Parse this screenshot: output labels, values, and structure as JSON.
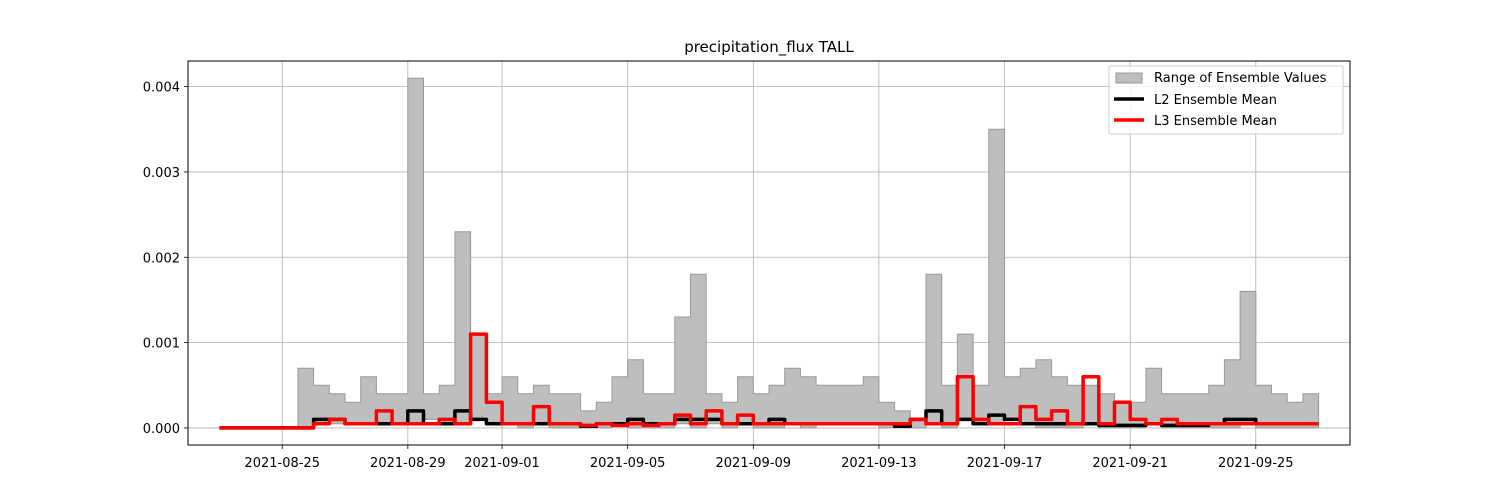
{
  "chart_data": {
    "type": "line",
    "title": "precipitation_flux TALL",
    "xlabel": "",
    "ylabel": "",
    "x_ticks": [
      "2021-08-25",
      "2021-08-29",
      "2021-09-01",
      "2021-09-05",
      "2021-09-09",
      "2021-09-13",
      "2021-09-17",
      "2021-09-21",
      "2021-09-25"
    ],
    "y_ticks": [
      "0.000",
      "0.001",
      "0.002",
      "0.003",
      "0.004"
    ],
    "xlim": [
      "2021-08-22",
      "2021-09-28"
    ],
    "ylim": [
      -0.0002,
      0.0043
    ],
    "grid": true,
    "legend_position": "top-right",
    "x": [
      "2021-08-23",
      "2021-08-23",
      "2021-08-24",
      "2021-08-24",
      "2021-08-25",
      "2021-08-25",
      "2021-08-26",
      "2021-08-26",
      "2021-08-27",
      "2021-08-27",
      "2021-08-28",
      "2021-08-28",
      "2021-08-29",
      "2021-08-29",
      "2021-08-30",
      "2021-08-30",
      "2021-08-31",
      "2021-08-31",
      "2021-09-01",
      "2021-09-01",
      "2021-09-02",
      "2021-09-02",
      "2021-09-03",
      "2021-09-03",
      "2021-09-04",
      "2021-09-04",
      "2021-09-05",
      "2021-09-05",
      "2021-09-06",
      "2021-09-06",
      "2021-09-07",
      "2021-09-07",
      "2021-09-08",
      "2021-09-08",
      "2021-09-09",
      "2021-09-09",
      "2021-09-10",
      "2021-09-10",
      "2021-09-11",
      "2021-09-11",
      "2021-09-12",
      "2021-09-12",
      "2021-09-13",
      "2021-09-13",
      "2021-09-14",
      "2021-09-14",
      "2021-09-15",
      "2021-09-15",
      "2021-09-16",
      "2021-09-16",
      "2021-09-17",
      "2021-09-17",
      "2021-09-18",
      "2021-09-18",
      "2021-09-19",
      "2021-09-19",
      "2021-09-20",
      "2021-09-20",
      "2021-09-21",
      "2021-09-21",
      "2021-09-22",
      "2021-09-22",
      "2021-09-23",
      "2021-09-23",
      "2021-09-24",
      "2021-09-24",
      "2021-09-25",
      "2021-09-25",
      "2021-09-26",
      "2021-09-26",
      "2021-09-27"
    ],
    "series": [
      {
        "name": "Range of Ensemble Values",
        "kind": "range",
        "color": "#bebebe",
        "edge_color": "#999999",
        "low": [
          0,
          0,
          0,
          0,
          0,
          0,
          5e-05,
          5e-05,
          5e-05,
          5e-05,
          5e-05,
          5e-05,
          5e-05,
          0.0001,
          5e-05,
          5e-05,
          0.0001,
          5e-05,
          5e-05,
          0,
          5e-05,
          0,
          0,
          0,
          0,
          5e-05,
          0,
          0,
          0,
          5e-05,
          0,
          5e-05,
          0,
          5e-05,
          0,
          0,
          5e-05,
          0,
          5e-05,
          5e-05,
          5e-05,
          5e-05,
          0,
          0,
          0,
          5e-05,
          0,
          0.0001,
          5e-05,
          5e-05,
          0.0001,
          5e-05,
          0,
          0,
          0,
          5e-05,
          0,
          0,
          0,
          5e-05,
          0,
          0,
          0,
          0,
          0,
          5e-05,
          0,
          0,
          0,
          0,
          0
        ],
        "high": [
          0,
          0,
          0,
          0,
          0,
          0.0007,
          0.0005,
          0.0004,
          0.0003,
          0.0006,
          0.0004,
          0.0004,
          0.0041,
          0.0004,
          0.0005,
          0.0023,
          0.0011,
          0.0004,
          0.0006,
          0.0004,
          0.0005,
          0.0004,
          0.0004,
          0.0002,
          0.0003,
          0.0006,
          0.0008,
          0.0004,
          0.0004,
          0.0013,
          0.0018,
          0.0004,
          0.0003,
          0.0006,
          0.0004,
          0.0005,
          0.0007,
          0.0006,
          0.0005,
          0.0005,
          0.0005,
          0.0006,
          0.0003,
          0.0002,
          0.0001,
          0.0018,
          0.0005,
          0.0011,
          0.0005,
          0.0035,
          0.0006,
          0.0007,
          0.0008,
          0.0006,
          0.0005,
          0.0005,
          0.0004,
          0.0003,
          0.0003,
          0.0007,
          0.0004,
          0.0004,
          0.0004,
          0.0005,
          0.0008,
          0.0016,
          0.0005,
          0.0004,
          0.0003,
          0.0004,
          0.0002
        ]
      },
      {
        "name": "L2 Ensemble Mean",
        "kind": "line",
        "color": "#000000",
        "values": [
          0,
          0,
          0,
          0,
          0,
          0,
          0.0001,
          0.0001,
          5e-05,
          5e-05,
          5e-05,
          5e-05,
          0.0002,
          5e-05,
          5e-05,
          0.0002,
          0.0001,
          5e-05,
          5e-05,
          5e-05,
          5e-05,
          5e-05,
          5e-05,
          2e-05,
          5e-05,
          5e-05,
          0.0001,
          5e-05,
          5e-05,
          0.0001,
          0.0001,
          0.0001,
          5e-05,
          5e-05,
          5e-05,
          0.0001,
          5e-05,
          5e-05,
          5e-05,
          5e-05,
          5e-05,
          5e-05,
          5e-05,
          2e-05,
          0.0001,
          0.0002,
          5e-05,
          0.0001,
          5e-05,
          0.00015,
          0.0001,
          5e-05,
          5e-05,
          5e-05,
          5e-05,
          5e-05,
          3e-05,
          3e-05,
          3e-05,
          5e-05,
          3e-05,
          3e-05,
          3e-05,
          5e-05,
          0.0001,
          0.0001,
          5e-05,
          5e-05,
          5e-05,
          5e-05,
          5e-05
        ]
      },
      {
        "name": "L3 Ensemble Mean",
        "kind": "line",
        "color": "#ff0000",
        "values": [
          0,
          0,
          0,
          0,
          0,
          0,
          5e-05,
          0.0001,
          5e-05,
          5e-05,
          0.0002,
          5e-05,
          5e-05,
          5e-05,
          0.0001,
          5e-05,
          0.0011,
          0.0003,
          5e-05,
          5e-05,
          0.00025,
          5e-05,
          5e-05,
          3e-05,
          5e-05,
          3e-05,
          5e-05,
          3e-05,
          5e-05,
          0.00015,
          5e-05,
          0.0002,
          5e-05,
          0.00015,
          5e-05,
          5e-05,
          5e-05,
          5e-05,
          5e-05,
          5e-05,
          5e-05,
          5e-05,
          5e-05,
          5e-05,
          0.0001,
          5e-05,
          5e-05,
          0.0006,
          0.0001,
          5e-05,
          5e-05,
          0.00025,
          0.0001,
          0.0002,
          5e-05,
          0.0006,
          5e-05,
          0.0003,
          0.0001,
          5e-05,
          0.0001,
          5e-05,
          5e-05,
          5e-05,
          5e-05,
          5e-05,
          5e-05,
          5e-05,
          5e-05,
          5e-05,
          5e-05
        ]
      }
    ]
  }
}
